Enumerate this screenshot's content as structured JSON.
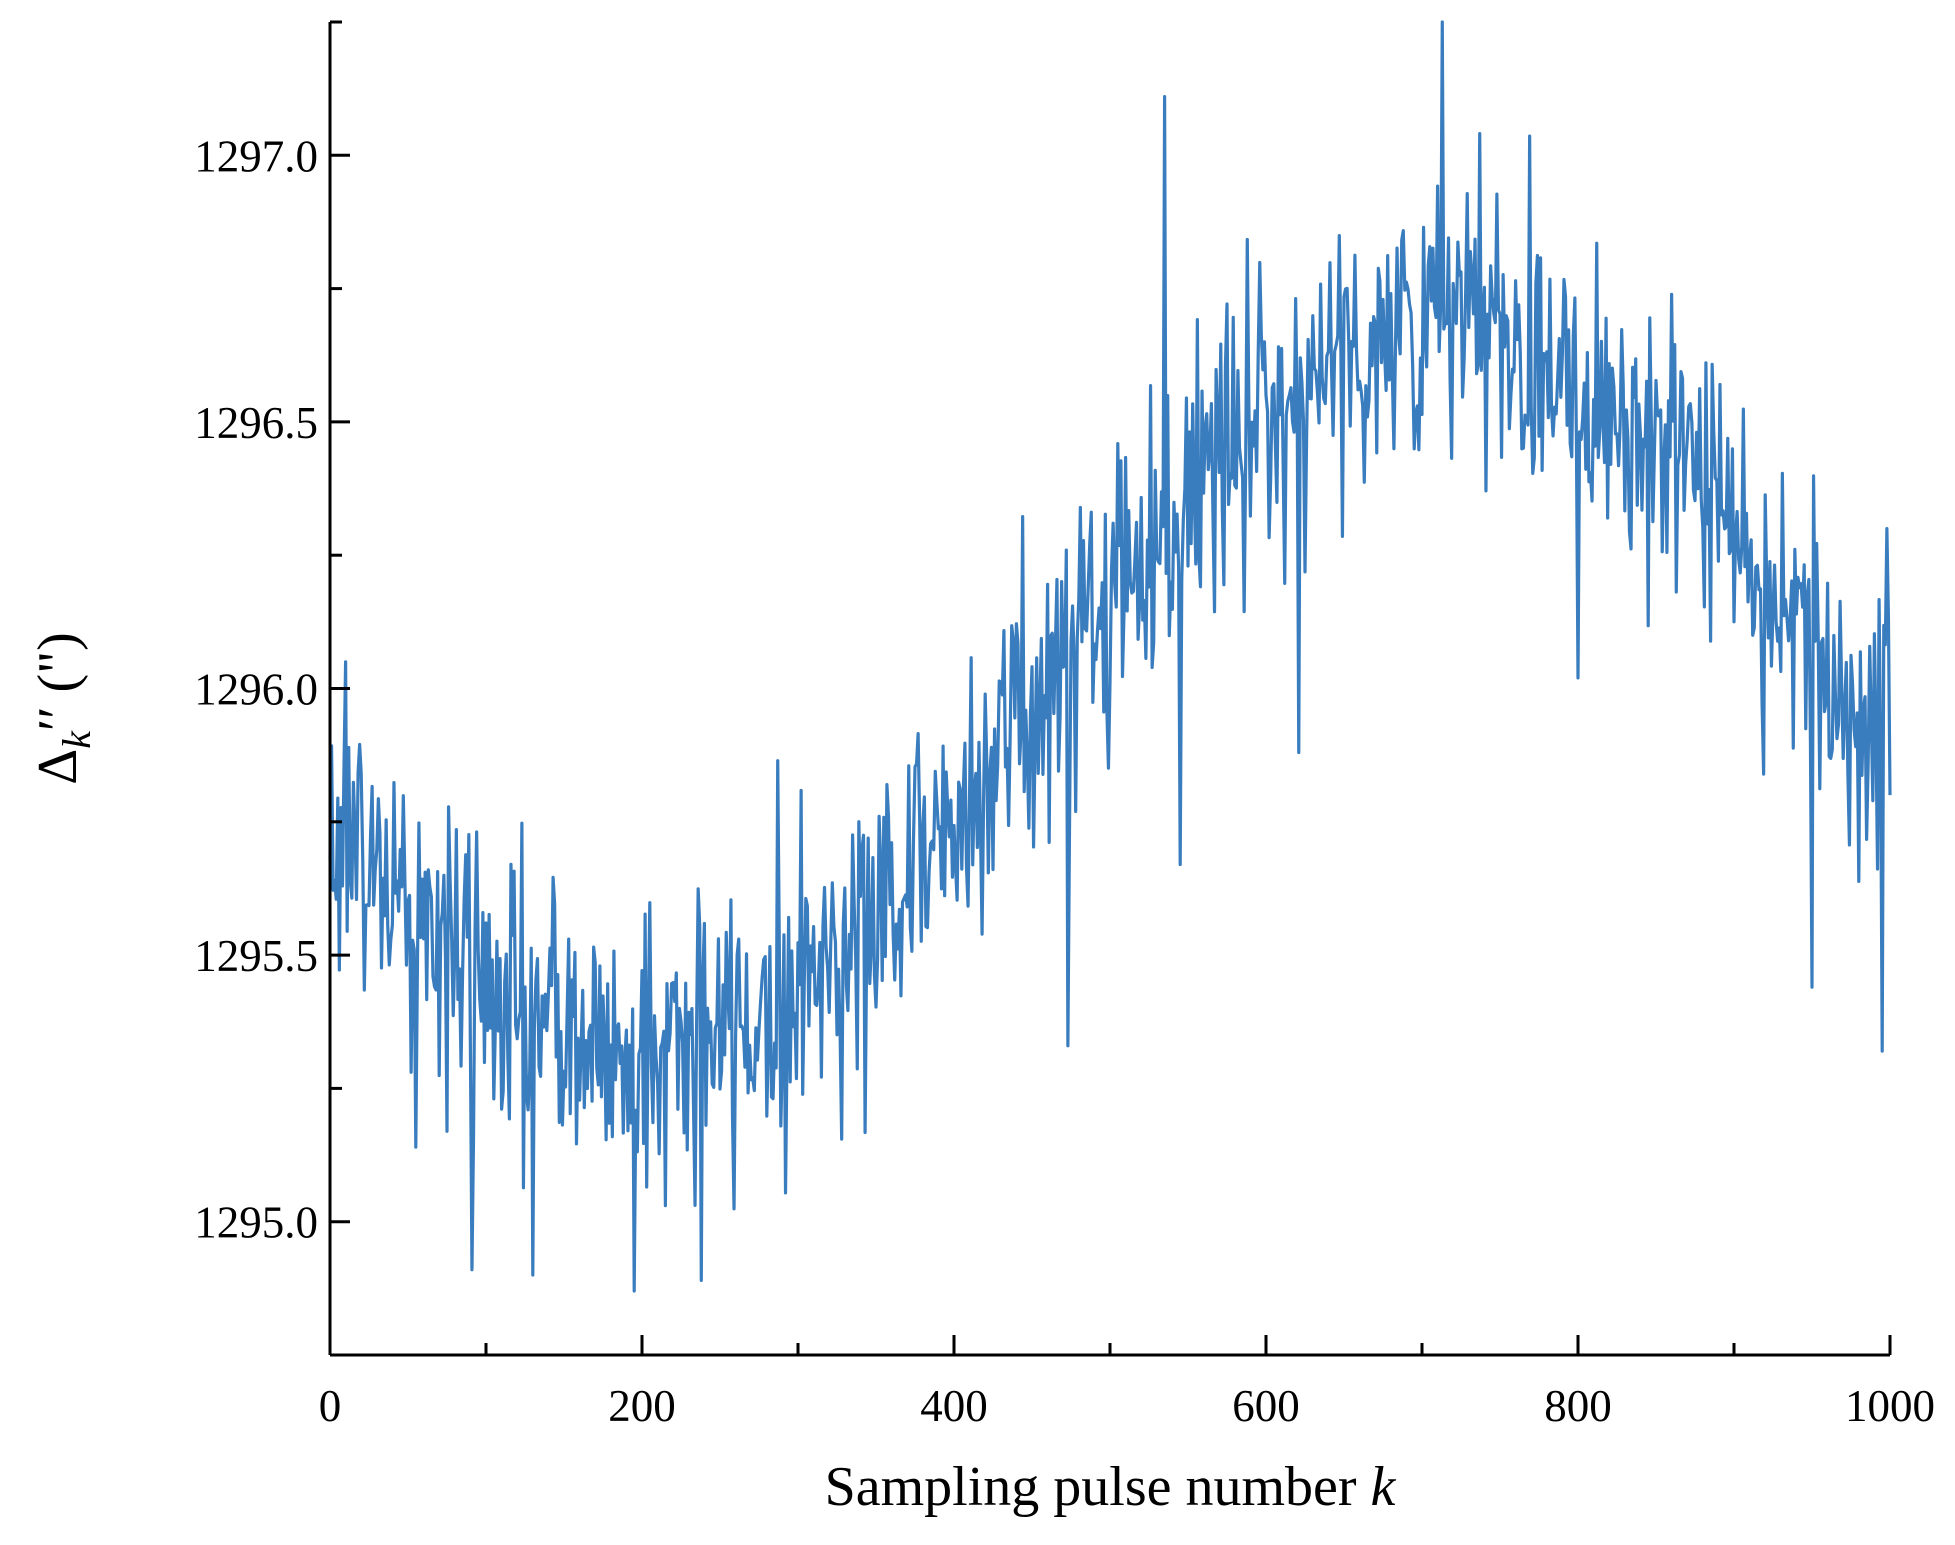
{
  "chart_data": {
    "type": "line",
    "title": "",
    "xlabel": "Sampling pulse number",
    "xlabel_var": "k",
    "ylabel_symbol": "Δ",
    "ylabel_sub": "k",
    "ylabel_prime": "′′",
    "ylabel_unit": "(\")",
    "xlim": [
      0,
      1000
    ],
    "ylim": [
      1294.75,
      1297.25
    ],
    "xticks": [
      0,
      200,
      400,
      600,
      800,
      1000
    ],
    "xtick_labels": [
      "0",
      "200",
      "400",
      "600",
      "800",
      "1000"
    ],
    "x_minor_step": 100,
    "yticks": [
      1295.0,
      1295.5,
      1296.0,
      1296.5,
      1297.0
    ],
    "ytick_labels": [
      "1295.0",
      "1295.5",
      "1296.0",
      "1296.5",
      "1297.0"
    ],
    "y_minor_step": 0.25,
    "grid": false,
    "legend": "none",
    "series": [
      {
        "name": "Δk''",
        "color": "#3a7dbf",
        "trend": {
          "x_start": 0,
          "x_end": 1000,
          "count": 1001,
          "mean": 1296.0,
          "amplitude": 0.68,
          "minimum_at": 200,
          "maximum_at": 715,
          "noise_std": 0.14
        },
        "extreme_points": [
          {
            "x": 0,
            "y": 1295.68
          },
          {
            "x": 10,
            "y": 1296.05
          },
          {
            "x": 55,
            "y": 1295.14
          },
          {
            "x": 91,
            "y": 1294.91
          },
          {
            "x": 130,
            "y": 1294.9
          },
          {
            "x": 195,
            "y": 1294.87
          },
          {
            "x": 238,
            "y": 1294.89
          },
          {
            "x": 473,
            "y": 1295.33
          },
          {
            "x": 535,
            "y": 1297.11
          },
          {
            "x": 545,
            "y": 1295.67
          },
          {
            "x": 621,
            "y": 1295.88
          },
          {
            "x": 713,
            "y": 1297.25
          },
          {
            "x": 800,
            "y": 1296.02
          },
          {
            "x": 950,
            "y": 1295.44
          },
          {
            "x": 995,
            "y": 1295.32
          },
          {
            "x": 998,
            "y": 1296.3
          },
          {
            "x": 1000,
            "y": 1295.8
          }
        ]
      }
    ]
  }
}
